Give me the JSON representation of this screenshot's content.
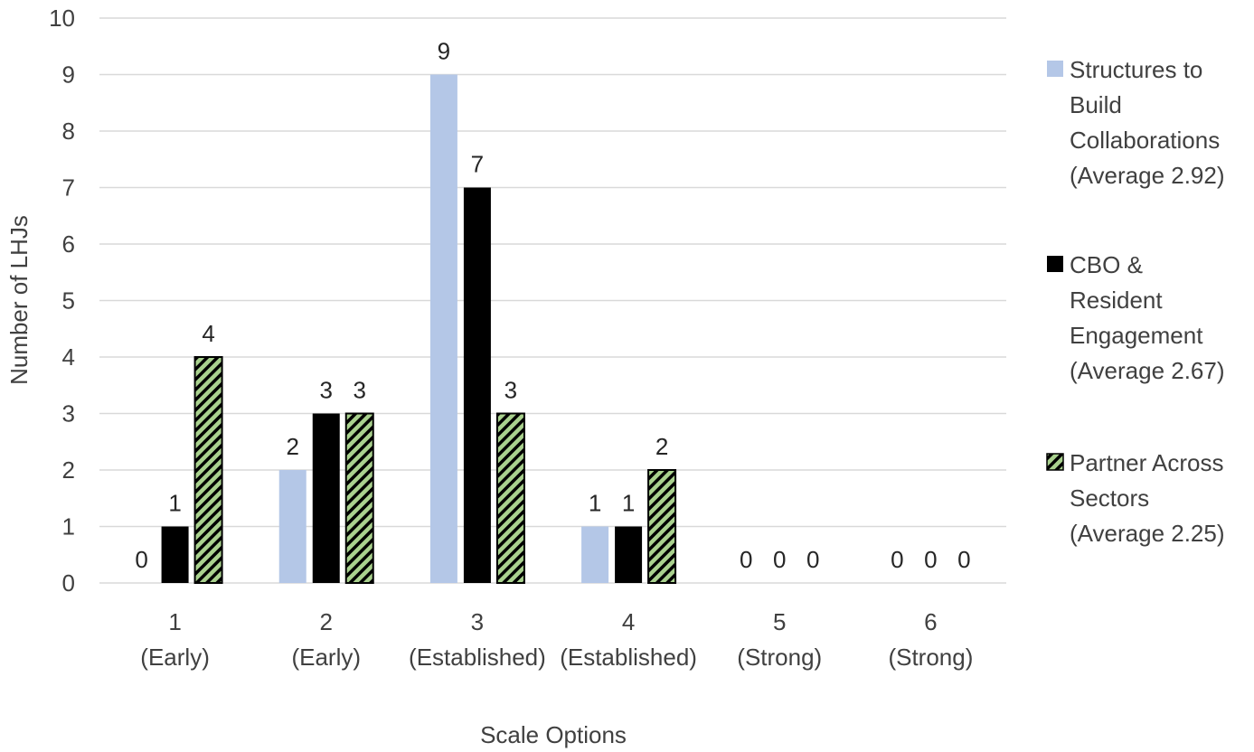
{
  "chart_data": {
    "type": "bar",
    "title": "",
    "xlabel": "Scale Options",
    "ylabel": "Number of LHJs",
    "ylim": [
      0,
      10
    ],
    "yticks": [
      "0",
      "1",
      "2",
      "3",
      "4",
      "5",
      "6",
      "7",
      "8",
      "9",
      "10"
    ],
    "grid": true,
    "legend_position": "right",
    "categories": [
      {
        "number": "1",
        "label": "(Early)"
      },
      {
        "number": "2",
        "label": "(Early)"
      },
      {
        "number": "3",
        "label": "(Established)"
      },
      {
        "number": "4",
        "label": "(Established)"
      },
      {
        "number": "5",
        "label": "(Strong)"
      },
      {
        "number": "6",
        "label": "(Strong)"
      }
    ],
    "series": [
      {
        "name": "Structures to Build Collaborations (Average 2.92)",
        "legend_lines": [
          "Structures to",
          "Build",
          "Collaborations",
          "(Average 2.92)"
        ],
        "values": [
          0,
          2,
          9,
          1,
          0,
          0
        ],
        "color": "#b4c7e7",
        "pattern": "solid"
      },
      {
        "name": "CBO & Resident Engagement (Average 2.67)",
        "legend_lines": [
          "CBO &",
          "Resident",
          "Engagement",
          "(Average 2.67)"
        ],
        "values": [
          1,
          3,
          7,
          1,
          0,
          0
        ],
        "color": "#000000",
        "pattern": "solid"
      },
      {
        "name": "Partner Across Sectors (Average 2.25)",
        "legend_lines": [
          "Partner Across",
          "Sectors",
          "(Average 2.25)"
        ],
        "values": [
          4,
          3,
          3,
          2,
          0,
          0
        ],
        "color": "#a9d18e",
        "pattern": "diagonal-stripes"
      }
    ]
  }
}
